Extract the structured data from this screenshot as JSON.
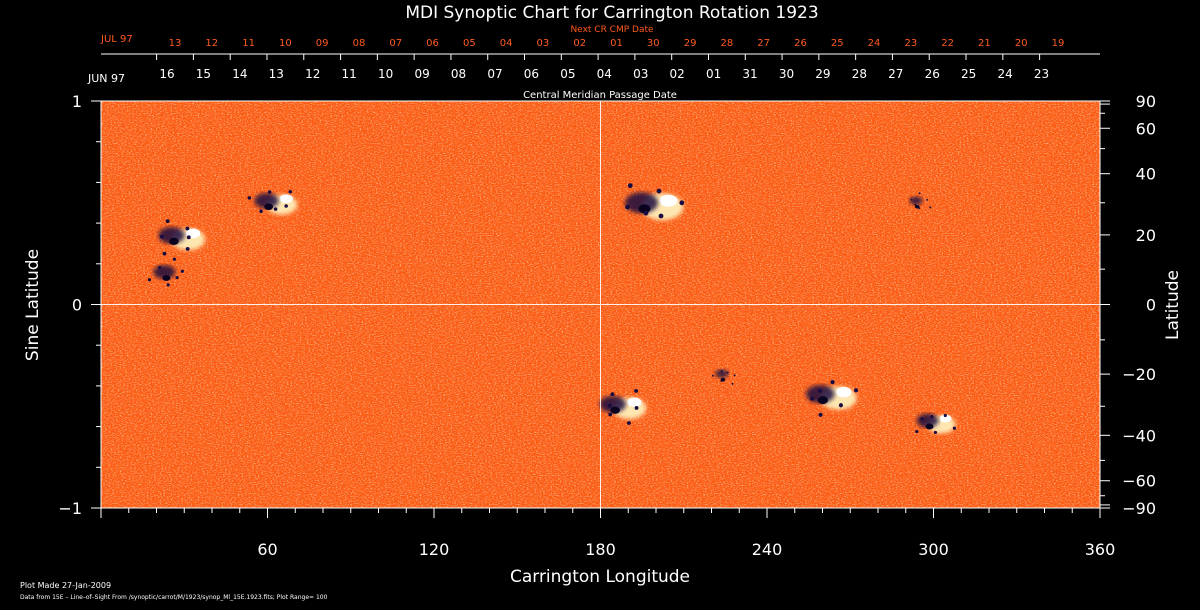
{
  "chart_data": {
    "type": "heatmap",
    "title": "MDI Synoptic Chart for Carrington Rotation 1923",
    "xlabel": "Carrington Longitude",
    "ylabel_left": "Sine Latitude",
    "ylabel_right": "Latitude",
    "xlim": [
      0,
      360
    ],
    "ylim": [
      -1,
      1
    ],
    "x_ticks": [
      60,
      120,
      180,
      240,
      300,
      360
    ],
    "y_left_ticks": [
      {
        "value": 1,
        "label": "1"
      },
      {
        "value": 0,
        "label": "0"
      },
      {
        "value": -1,
        "label": "−1"
      }
    ],
    "y_right_ticks": [
      {
        "deg": 90,
        "label": "90"
      },
      {
        "deg": 60,
        "label": "60"
      },
      {
        "deg": 40,
        "label": "40"
      },
      {
        "deg": 20,
        "label": "20"
      },
      {
        "deg": 0,
        "label": "0"
      },
      {
        "deg": -20,
        "label": "−20"
      },
      {
        "deg": -40,
        "label": "−40"
      },
      {
        "deg": -60,
        "label": "−60"
      },
      {
        "deg": -90,
        "label": "−90"
      }
    ],
    "cmp_axis_label": "Central Meridian Passage Date",
    "cmp_month_start": "JUN 97",
    "cmp_dates": [
      "16",
      "15",
      "14",
      "13",
      "12",
      "11",
      "10",
      "09",
      "08",
      "07",
      "06",
      "05",
      "04",
      "03",
      "02",
      "01",
      "31",
      "30",
      "29",
      "28",
      "27",
      "26",
      "25",
      "24",
      "23"
    ],
    "next_cmp_label": "Next CR CMP Date",
    "next_cmp_month": "JUL 97",
    "next_cmp_dates": [
      "13",
      "12",
      "11",
      "10",
      "09",
      "08",
      "07",
      "06",
      "05",
      "04",
      "03",
      "02",
      "01",
      "30",
      "29",
      "28",
      "27",
      "26",
      "25",
      "24",
      "23",
      "22",
      "21",
      "20",
      "19"
    ],
    "active_regions": [
      {
        "lon": 28,
        "sinlat": 0.33,
        "polarity": "mixed",
        "size": 1.2
      },
      {
        "lon": 25,
        "sinlat": 0.15,
        "polarity": "neg",
        "size": 1.0
      },
      {
        "lon": 62,
        "sinlat": 0.5,
        "polarity": "mixed",
        "size": 1.1
      },
      {
        "lon": 198,
        "sinlat": 0.49,
        "polarity": "mixed",
        "size": 1.5
      },
      {
        "lon": 295,
        "sinlat": 0.5,
        "polarity": "neg",
        "size": 0.6
      },
      {
        "lon": 187,
        "sinlat": -0.5,
        "polarity": "mixed",
        "size": 1.2
      },
      {
        "lon": 262,
        "sinlat": -0.45,
        "polarity": "mixed",
        "size": 1.3
      },
      {
        "lon": 300,
        "sinlat": -0.58,
        "polarity": "mixed",
        "size": 1.0
      },
      {
        "lon": 225,
        "sinlat": -0.35,
        "polarity": "neg",
        "size": 0.6
      }
    ]
  },
  "footer": {
    "line1": "Plot Made 27-Jan-2009",
    "line2": "Data from 15E – Line–of–Sight From /synoptic/carrot/M/1923/synop_Ml_15E.1923.fits; Plot Range= 100"
  },
  "colors": {
    "background": "#000000",
    "text": "#ffffff",
    "next_cmp_text": "#ff5a1f",
    "map_base": "#ff5a10"
  }
}
